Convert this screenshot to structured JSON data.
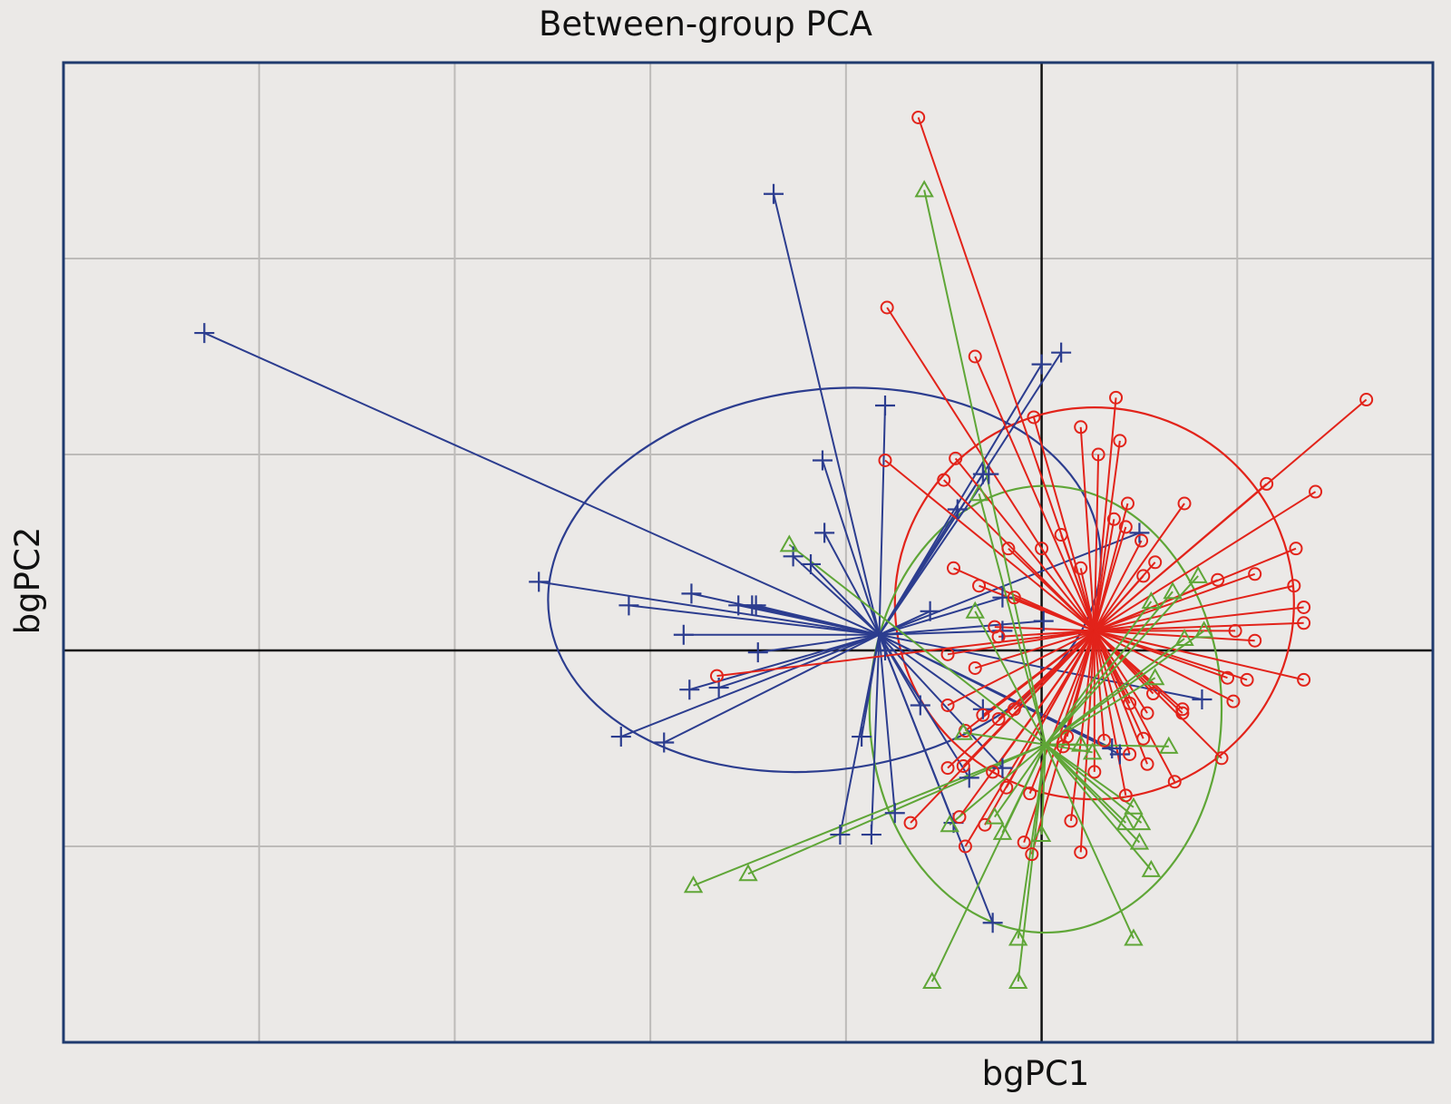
{
  "chart_data": {
    "type": "scatter",
    "title": "Between-group PCA",
    "xlabel": "bgPC1",
    "ylabel": "bgPC2",
    "xlim": [
      -5,
      2
    ],
    "ylim": [
      -2,
      3
    ],
    "grid": true,
    "axes_through_origin": true,
    "colors": {
      "blue": "#2c3d8f",
      "red": "#e2231a",
      "green": "#5fa637",
      "frame": "#1f3a6e",
      "grid": "#bdbbb9",
      "zero": "#111111"
    },
    "series": [
      {
        "name": "blue",
        "marker": "plus",
        "centroid": [
          -0.83,
          0.08
        ],
        "ellipse": {
          "cx": -1.11,
          "cy": 0.36,
          "rx": 1.42,
          "ry": 0.97,
          "angle_deg": -8
        },
        "points": [
          [
            -4.28,
            1.62
          ],
          [
            -1.37,
            2.33
          ],
          [
            0.1,
            1.52
          ],
          [
            0.0,
            1.46
          ],
          [
            -0.8,
            1.25
          ],
          [
            -1.12,
            0.97
          ],
          [
            -1.11,
            0.6
          ],
          [
            -1.18,
            0.44
          ],
          [
            -1.27,
            0.48
          ],
          [
            -2.57,
            0.35
          ],
          [
            -2.11,
            0.23
          ],
          [
            -1.79,
            0.29
          ],
          [
            -1.55,
            0.23
          ],
          [
            -1.48,
            0.23
          ],
          [
            -1.46,
            0.23
          ],
          [
            -1.83,
            0.08
          ],
          [
            -1.45,
            -0.01
          ],
          [
            -1.8,
            -0.2
          ],
          [
            -1.65,
            -0.19
          ],
          [
            -2.15,
            -0.44
          ],
          [
            -1.93,
            -0.47
          ],
          [
            -1.03,
            -0.94
          ],
          [
            -0.87,
            -0.94
          ],
          [
            -0.92,
            -0.44
          ],
          [
            -0.62,
            -0.28
          ],
          [
            -0.45,
            -0.88
          ],
          [
            -0.75,
            -0.83
          ],
          [
            -0.3,
            0.9
          ],
          [
            -0.43,
            0.72
          ],
          [
            0.82,
            -0.25
          ],
          [
            0.36,
            -0.5
          ],
          [
            -0.8,
            0.0
          ],
          [
            -0.37,
            -0.65
          ],
          [
            -0.2,
            -0.6
          ],
          [
            -0.2,
            0.27
          ],
          [
            -0.2,
            0.1
          ],
          [
            0.01,
            0.15
          ],
          [
            -0.3,
            -0.3
          ],
          [
            0.4,
            -0.53
          ],
          [
            -0.25,
            -1.39
          ],
          [
            -0.27,
            0.9
          ],
          [
            -0.57,
            0.2
          ],
          [
            0.5,
            0.6
          ]
        ]
      },
      {
        "name": "red",
        "marker": "circle",
        "centroid": [
          0.27,
          0.1
        ],
        "ellipse": {
          "cx": 0.27,
          "cy": 0.24,
          "rx": 1.02,
          "ry": 1.0,
          "angle_deg": 0
        },
        "points": [
          [
            -0.63,
            2.72
          ],
          [
            -0.79,
            1.75
          ],
          [
            -0.34,
            1.5
          ],
          [
            -0.04,
            1.19
          ],
          [
            0.38,
            1.29
          ],
          [
            0.2,
            1.14
          ],
          [
            1.66,
            1.28
          ],
          [
            -0.8,
            0.97
          ],
          [
            -0.44,
            0.98
          ],
          [
            -0.5,
            0.87
          ],
          [
            0.29,
            1.0
          ],
          [
            0.4,
            1.07
          ],
          [
            0.73,
            0.75
          ],
          [
            1.4,
            0.81
          ],
          [
            1.15,
            0.85
          ],
          [
            0.44,
            0.75
          ],
          [
            0.43,
            0.63
          ],
          [
            1.3,
            0.52
          ],
          [
            1.29,
            0.33
          ],
          [
            1.34,
            0.22
          ],
          [
            1.34,
            0.14
          ],
          [
            0.9,
            0.36
          ],
          [
            0.37,
            0.67
          ],
          [
            0.51,
            0.56
          ],
          [
            0.1,
            0.59
          ],
          [
            0.2,
            0.42
          ],
          [
            0.0,
            0.52
          ],
          [
            -0.45,
            0.42
          ],
          [
            -0.17,
            0.52
          ],
          [
            -0.32,
            0.33
          ],
          [
            -0.14,
            0.27
          ],
          [
            -0.24,
            0.12
          ],
          [
            -0.22,
            0.07
          ],
          [
            -0.48,
            -0.02
          ],
          [
            -0.34,
            -0.09
          ],
          [
            -1.66,
            -0.13
          ],
          [
            1.05,
            -0.15
          ],
          [
            1.09,
            0.05
          ],
          [
            1.34,
            -0.15
          ],
          [
            0.98,
            -0.26
          ],
          [
            0.95,
            -0.14
          ],
          [
            0.45,
            -0.27
          ],
          [
            0.72,
            -0.32
          ],
          [
            0.54,
            -0.32
          ],
          [
            0.57,
            -0.22
          ],
          [
            0.52,
            -0.45
          ],
          [
            0.45,
            -0.53
          ],
          [
            -0.48,
            -0.28
          ],
          [
            -0.39,
            -0.41
          ],
          [
            -0.3,
            -0.33
          ],
          [
            -0.22,
            -0.35
          ],
          [
            -0.14,
            -0.3
          ],
          [
            -0.4,
            -0.59
          ],
          [
            -0.48,
            -0.6
          ],
          [
            -0.42,
            -0.85
          ],
          [
            -0.67,
            -0.88
          ],
          [
            -0.39,
            -1.0
          ],
          [
            -0.29,
            -0.89
          ],
          [
            -0.25,
            -0.62
          ],
          [
            -0.06,
            -0.73
          ],
          [
            -0.18,
            -0.7
          ],
          [
            -0.09,
            -0.98
          ],
          [
            -0.05,
            -1.04
          ],
          [
            0.2,
            -1.03
          ],
          [
            0.15,
            -0.87
          ],
          [
            0.11,
            -0.49
          ],
          [
            0.13,
            -0.44
          ],
          [
            0.32,
            -0.46
          ],
          [
            0.27,
            -0.62
          ],
          [
            0.54,
            -0.58
          ],
          [
            0.43,
            -0.74
          ],
          [
            0.68,
            -0.67
          ],
          [
            0.92,
            -0.55
          ],
          [
            0.99,
            0.1
          ],
          [
            1.09,
            0.39
          ],
          [
            0.72,
            -0.3
          ],
          [
            0.58,
            0.45
          ],
          [
            0.52,
            0.38
          ]
        ]
      },
      {
        "name": "green",
        "marker": "triangle",
        "centroid": [
          0.02,
          -0.48
        ],
        "ellipse": {
          "cx": 0.02,
          "cy": -0.3,
          "rx": 0.9,
          "ry": 1.14,
          "angle_deg": 0
        },
        "points": [
          [
            -0.6,
            2.35
          ],
          [
            -1.29,
            0.54
          ],
          [
            -0.32,
            0.8
          ],
          [
            -1.78,
            -1.2
          ],
          [
            -1.5,
            -1.14
          ],
          [
            -0.56,
            -1.69
          ],
          [
            -0.12,
            -1.69
          ],
          [
            -0.12,
            -1.47
          ],
          [
            0.47,
            -1.47
          ],
          [
            0.5,
            -0.98
          ],
          [
            0.56,
            -1.12
          ],
          [
            0.43,
            -0.88
          ],
          [
            -0.47,
            -0.89
          ],
          [
            -0.24,
            -0.85
          ],
          [
            -0.2,
            -0.93
          ],
          [
            0.0,
            -0.94
          ],
          [
            0.26,
            -0.52
          ],
          [
            0.65,
            -0.49
          ],
          [
            0.51,
            -0.88
          ],
          [
            0.47,
            -0.8
          ],
          [
            0.8,
            0.38
          ],
          [
            0.83,
            0.1
          ],
          [
            0.56,
            0.25
          ],
          [
            0.2,
            -0.48
          ],
          [
            -0.34,
            0.2
          ],
          [
            -0.4,
            -0.42
          ],
          [
            0.58,
            -0.14
          ],
          [
            0.67,
            0.3
          ],
          [
            0.73,
            0.06
          ]
        ]
      }
    ]
  }
}
